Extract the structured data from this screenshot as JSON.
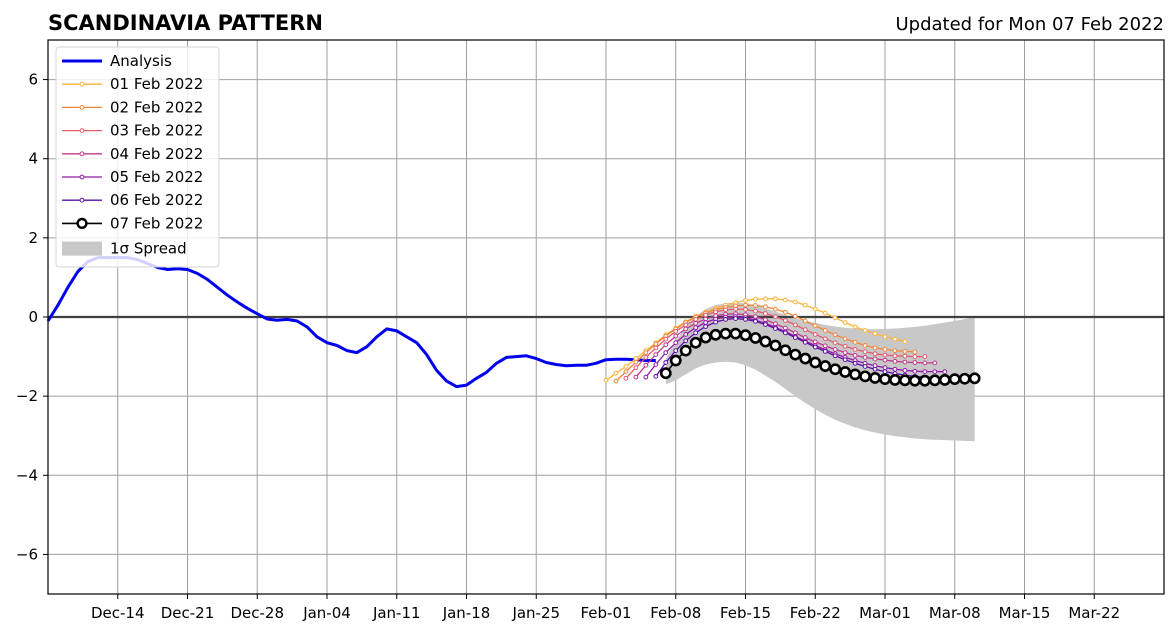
{
  "chart_data": {
    "type": "line",
    "title": "SCANDINAVIA PATTERN",
    "subtitle": "Updated for Mon 07 Feb 2022",
    "xlabel": "",
    "ylabel": "",
    "x_range": [
      "2021-12-07",
      "2022-03-29"
    ],
    "ylim": [
      -7,
      7
    ],
    "y_ticks": [
      -6,
      -4,
      -2,
      0,
      2,
      4,
      6
    ],
    "y_tick_labels": [
      "−6",
      "−4",
      "−2",
      "0",
      "2",
      "4",
      "6"
    ],
    "x_ticks": [
      "2021-12-14",
      "2021-12-21",
      "2021-12-28",
      "2022-01-04",
      "2022-01-11",
      "2022-01-18",
      "2022-01-25",
      "2022-02-01",
      "2022-02-08",
      "2022-02-15",
      "2022-02-22",
      "2022-03-01",
      "2022-03-08",
      "2022-03-15",
      "2022-03-22"
    ],
    "x_tick_labels": [
      "Dec-14",
      "Dec-21",
      "Dec-28",
      "Jan-04",
      "Jan-11",
      "Jan-18",
      "Jan-25",
      "Feb-01",
      "Feb-08",
      "Feb-15",
      "Feb-22",
      "Mar-01",
      "Mar-08",
      "Mar-15",
      "Mar-22"
    ],
    "grid": true,
    "legend_position": "top-left",
    "analysis": {
      "name": "Analysis",
      "color": "#0000ee",
      "start": "2021-12-07",
      "values": [
        -0.1,
        0.3,
        0.75,
        1.15,
        1.4,
        1.5,
        1.5,
        1.5,
        1.5,
        1.45,
        1.35,
        1.25,
        1.2,
        1.22,
        1.2,
        1.1,
        0.95,
        0.75,
        0.55,
        0.38,
        0.22,
        0.08,
        -0.05,
        -0.08,
        -0.06,
        -0.1,
        -0.25,
        -0.5,
        -0.65,
        -0.72,
        -0.85,
        -0.9,
        -0.75,
        -0.5,
        -0.3,
        -0.35,
        -0.5,
        -0.65,
        -0.95,
        -1.35,
        -1.62,
        -1.76,
        -1.72,
        -1.55,
        -1.4,
        -1.17,
        -1.02,
        -1.0,
        -0.98,
        -1.05,
        -1.15,
        -1.2,
        -1.23,
        -1.22,
        -1.22,
        -1.17,
        -1.08,
        -1.07,
        -1.07,
        -1.08,
        -1.1,
        -1.1
      ]
    },
    "forecasts": [
      {
        "name": "01 Feb 2022",
        "color": "#fbb33a",
        "start": "2022-02-01",
        "values": [
          -1.6,
          -1.42,
          -1.25,
          -1.05,
          -0.85,
          -0.65,
          -0.45,
          -0.28,
          -0.12,
          0.02,
          0.12,
          0.22,
          0.3,
          0.36,
          0.42,
          0.45,
          0.46,
          0.46,
          0.43,
          0.38,
          0.3,
          0.2,
          0.1,
          -0.02,
          -0.14,
          -0.25,
          -0.34,
          -0.42,
          -0.5,
          -0.56,
          -0.62
        ]
      },
      {
        "name": "02 Feb 2022",
        "color": "#f0863c",
        "start": "2022-02-02",
        "values": [
          -1.62,
          -1.38,
          -1.14,
          -0.9,
          -0.68,
          -0.48,
          -0.3,
          -0.14,
          0.0,
          0.1,
          0.18,
          0.24,
          0.28,
          0.3,
          0.29,
          0.26,
          0.2,
          0.12,
          0.02,
          -0.1,
          -0.22,
          -0.34,
          -0.45,
          -0.55,
          -0.64,
          -0.72,
          -0.78,
          -0.82,
          -0.85,
          -0.87,
          -0.88
        ]
      },
      {
        "name": "03 Feb 2022",
        "color": "#e45b6e",
        "start": "2022-02-03",
        "values": [
          -1.55,
          -1.28,
          -1.02,
          -0.78,
          -0.56,
          -0.36,
          -0.2,
          -0.06,
          0.05,
          0.13,
          0.18,
          0.2,
          0.19,
          0.15,
          0.09,
          0.01,
          -0.09,
          -0.2,
          -0.32,
          -0.44,
          -0.55,
          -0.65,
          -0.74,
          -0.82,
          -0.88,
          -0.93,
          -0.96,
          -0.98,
          -0.99,
          -1.0,
          -1.0
        ]
      },
      {
        "name": "04 Feb 2022",
        "color": "#c13a8a",
        "start": "2022-02-04",
        "values": [
          -1.52,
          -1.22,
          -0.95,
          -0.7,
          -0.48,
          -0.3,
          -0.16,
          -0.05,
          0.03,
          0.07,
          0.08,
          0.06,
          0.01,
          -0.07,
          -0.17,
          -0.28,
          -0.4,
          -0.52,
          -0.63,
          -0.73,
          -0.82,
          -0.9,
          -0.97,
          -1.02,
          -1.06,
          -1.09,
          -1.12,
          -1.14,
          -1.15,
          -1.16,
          -1.16
        ]
      },
      {
        "name": "05 Feb 2022",
        "color": "#9419a8",
        "start": "2022-02-05",
        "values": [
          -1.52,
          -1.2,
          -0.9,
          -0.65,
          -0.44,
          -0.27,
          -0.14,
          -0.05,
          0.0,
          0.01,
          -0.02,
          -0.08,
          -0.16,
          -0.26,
          -0.37,
          -0.49,
          -0.61,
          -0.72,
          -0.83,
          -0.93,
          -1.02,
          -1.1,
          -1.17,
          -1.23,
          -1.28,
          -1.32,
          -1.35,
          -1.37,
          -1.38,
          -1.38,
          -1.38
        ]
      },
      {
        "name": "06 Feb 2022",
        "color": "#5b0fa3",
        "start": "2022-02-06",
        "values": [
          -1.5,
          -1.15,
          -0.85,
          -0.6,
          -0.4,
          -0.24,
          -0.13,
          -0.06,
          -0.04,
          -0.06,
          -0.11,
          -0.19,
          -0.29,
          -0.4,
          -0.52,
          -0.64,
          -0.76,
          -0.87,
          -0.98,
          -1.08,
          -1.17,
          -1.25,
          -1.32,
          -1.38,
          -1.43,
          -1.47,
          -1.5,
          -1.52,
          -1.53,
          -1.54,
          -1.54
        ]
      },
      {
        "name": "07 Feb 2022",
        "color": "#000000",
        "start": "2022-02-07",
        "values": [
          -1.42,
          -1.1,
          -0.85,
          -0.65,
          -0.52,
          -0.45,
          -0.42,
          -0.42,
          -0.46,
          -0.53,
          -0.62,
          -0.72,
          -0.84,
          -0.95,
          -1.05,
          -1.15,
          -1.24,
          -1.32,
          -1.39,
          -1.45,
          -1.5,
          -1.54,
          -1.57,
          -1.59,
          -1.6,
          -1.61,
          -1.61,
          -1.6,
          -1.59,
          -1.57,
          -1.56,
          -1.55
        ]
      }
    ],
    "spread": {
      "name": "1σ Spread",
      "color": "#c8c8c8",
      "start": "2022-02-07",
      "upper": [
        -1.05,
        -0.6,
        -0.25,
        0.02,
        0.2,
        0.3,
        0.35,
        0.36,
        0.35,
        0.3,
        0.22,
        0.14,
        0.05,
        -0.03,
        -0.1,
        -0.15,
        -0.2,
        -0.24,
        -0.27,
        -0.29,
        -0.3,
        -0.31,
        -0.3,
        -0.29,
        -0.27,
        -0.25,
        -0.22,
        -0.18,
        -0.14,
        -0.1,
        -0.05,
        0.0
      ],
      "lower": [
        -1.7,
        -1.6,
        -1.45,
        -1.3,
        -1.2,
        -1.15,
        -1.13,
        -1.15,
        -1.22,
        -1.33,
        -1.48,
        -1.64,
        -1.82,
        -2.0,
        -2.17,
        -2.33,
        -2.47,
        -2.6,
        -2.7,
        -2.79,
        -2.86,
        -2.92,
        -2.97,
        -3.01,
        -3.04,
        -3.07,
        -3.09,
        -3.1,
        -3.11,
        -3.12,
        -3.13,
        -3.14
      ]
    }
  }
}
